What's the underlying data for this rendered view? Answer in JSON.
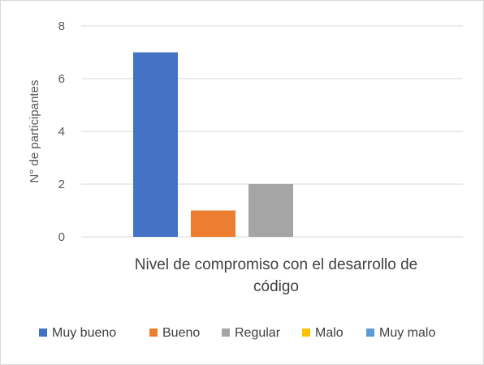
{
  "chart_data": {
    "type": "bar",
    "categories": [
      "Nivel de compromiso con el desarrollo de código"
    ],
    "category_label_lines": [
      "Nivel de compromiso con el desarrollo de",
      "código"
    ],
    "series": [
      {
        "name": "Muy bueno",
        "values": [
          7
        ],
        "color": "#4472C4"
      },
      {
        "name": "Bueno",
        "values": [
          1
        ],
        "color": "#ED7D31"
      },
      {
        "name": "Regular",
        "values": [
          2
        ],
        "color": "#A5A5A5"
      },
      {
        "name": "Malo",
        "values": [
          0
        ],
        "color": "#FFC000"
      },
      {
        "name": "Muy malo",
        "values": [
          0
        ],
        "color": "#5B9BD5"
      }
    ],
    "ylabel": "N° de participantes",
    "ylim": [
      0,
      8
    ],
    "yticks": [
      0,
      2,
      4,
      6,
      8
    ],
    "grid": true,
    "legend_position": "bottom"
  }
}
